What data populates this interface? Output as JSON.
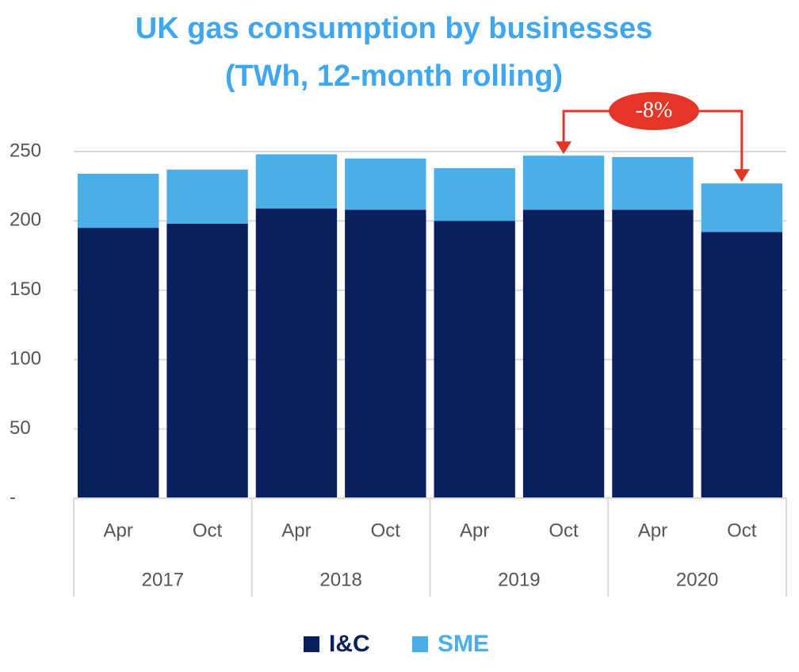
{
  "chart_data": {
    "type": "stacked_bar",
    "title": [
      "UK gas consumption by businesses",
      "(TWh, 12-month rolling)"
    ],
    "categories": [
      "Apr",
      "Oct",
      "Apr",
      "Oct",
      "Apr",
      "Oct",
      "Apr",
      "Oct"
    ],
    "groups": [
      "2017",
      "2018",
      "2019",
      "2020"
    ],
    "series": [
      {
        "name": "I&C",
        "color": "#0a1f5c",
        "values": [
          195,
          198,
          209,
          208,
          200,
          208,
          208,
          192
        ]
      },
      {
        "name": "SME",
        "color": "#4aaee8",
        "values": [
          39,
          39,
          39,
          37,
          38,
          39,
          38,
          35
        ]
      }
    ],
    "ylim": [
      0,
      250
    ],
    "yticks": [
      {
        "value": 0,
        "label": "-"
      },
      50,
      100,
      150,
      200,
      250
    ],
    "grid": true,
    "annotation": "-8%"
  }
}
